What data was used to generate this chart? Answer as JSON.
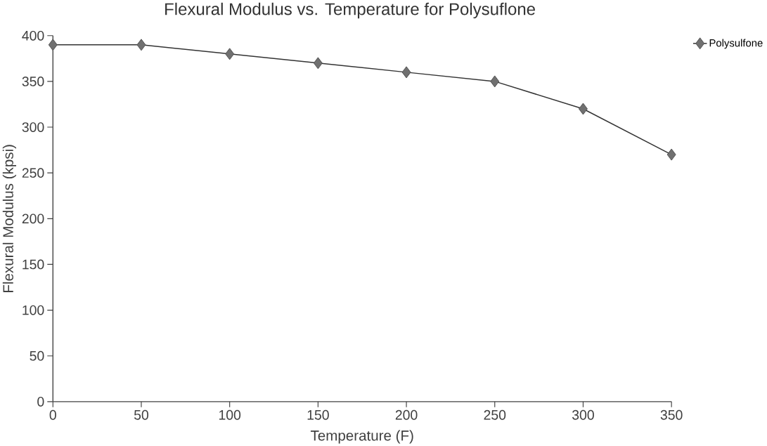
{
  "chart_data": {
    "type": "line",
    "title": "Flexural Modulus vs. Temperature for Polysuflone",
    "xlabel": "Temperature (F)",
    "ylabel": "Flexural Modulus (kpsi)",
    "x": [
      0,
      50,
      100,
      150,
      200,
      250,
      300,
      350
    ],
    "series": [
      {
        "name": "Polysulfone",
        "color": "#707070",
        "values": [
          390,
          390,
          380,
          370,
          360,
          350,
          320,
          270
        ]
      }
    ],
    "xlim": [
      0,
      350
    ],
    "ylim": [
      0,
      400
    ],
    "xticks": [
      0,
      50,
      100,
      150,
      200,
      250,
      300,
      350
    ],
    "yticks": [
      0,
      50,
      100,
      150,
      200,
      250,
      300,
      350,
      400
    ],
    "legend": "top right",
    "marker": "diamond",
    "line_style": "solid"
  }
}
